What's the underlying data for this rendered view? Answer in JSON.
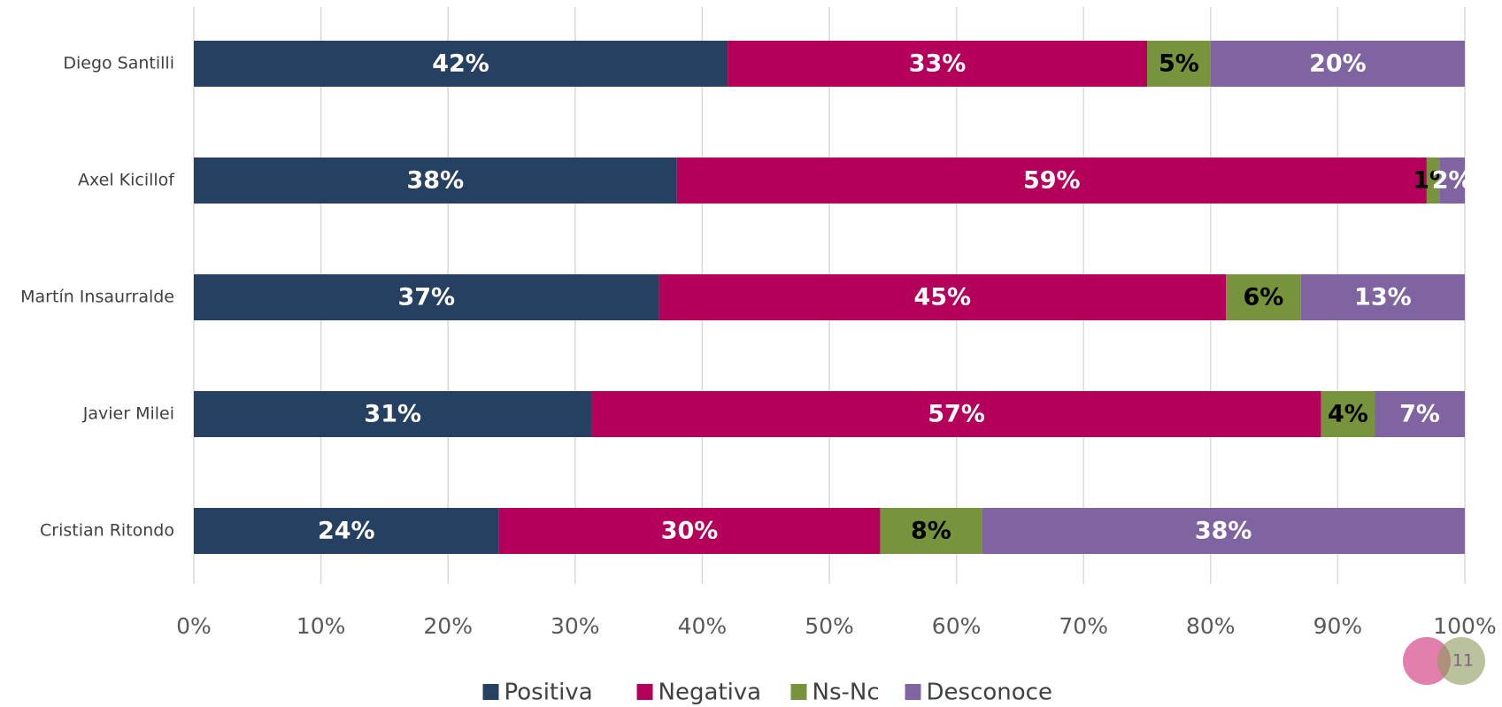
{
  "chart_data": {
    "type": "stacked_bar_horizontal",
    "categories": [
      "Diego Santilli",
      "Axel Kicillof",
      "Martín Insaurralde",
      "Javier Milei",
      "Cristian Ritondo"
    ],
    "series": [
      {
        "name": "Positiva",
        "color": "#264061",
        "label_color": "#ffffff",
        "values": [
          42,
          38,
          36.6,
          31.3,
          24
        ],
        "value_labels": [
          "42%",
          "38%",
          "37%",
          "31%",
          "24%"
        ]
      },
      {
        "name": "Negativa",
        "color": "#b5005b",
        "label_color": "#ffffff",
        "values": [
          33,
          59,
          44.6,
          57.4,
          30
        ],
        "value_labels": [
          "33%",
          "59%",
          "45%",
          "57%",
          "30%"
        ]
      },
      {
        "name": "Ns-Nc",
        "color": "#77933c",
        "label_color": "#000000",
        "values": [
          5,
          1,
          5.9,
          4.2,
          8
        ],
        "value_labels": [
          "5%",
          "1%",
          "6%",
          "4%",
          "8%"
        ]
      },
      {
        "name": "Desconoce",
        "color": "#8064a2",
        "label_color": "#ffffff",
        "values": [
          20,
          2,
          12.9,
          7.1,
          38
        ],
        "value_labels": [
          "20%",
          "2%",
          "13%",
          "7%",
          "38%"
        ]
      }
    ],
    "xlim": [
      0,
      100
    ],
    "xticks": [
      {
        "value": 0,
        "label": "0%"
      },
      {
        "value": 10,
        "label": "10%"
      },
      {
        "value": 20,
        "label": "20%"
      },
      {
        "value": 30,
        "label": "30%"
      },
      {
        "value": 40,
        "label": "40%"
      },
      {
        "value": 50,
        "label": "50%"
      },
      {
        "value": 60,
        "label": "60%"
      },
      {
        "value": 70,
        "label": "70%"
      },
      {
        "value": 80,
        "label": "80%"
      },
      {
        "value": 90,
        "label": "90%"
      },
      {
        "value": 100,
        "label": "100%"
      }
    ],
    "grid": true,
    "legend": "bottom",
    "page_number": "11"
  }
}
